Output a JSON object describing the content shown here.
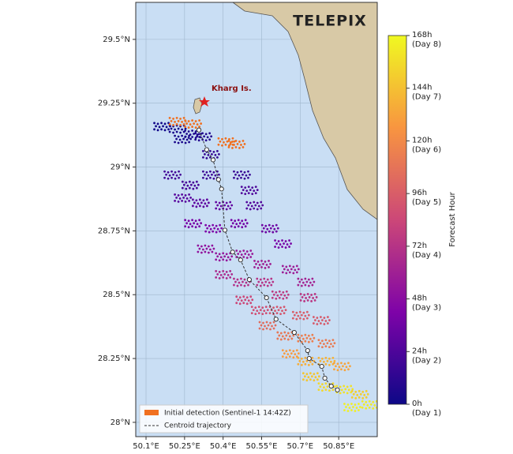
{
  "map": {
    "logo": "TELEPIX",
    "place_label": "Kharg Is.",
    "xlim": [
      50.06,
      51.0
    ],
    "ylim": [
      27.944,
      29.645
    ],
    "xticks": [
      {
        "value": 50.1,
        "label": "50.1°E"
      },
      {
        "value": 50.25,
        "label": "50.25°E"
      },
      {
        "value": 50.4,
        "label": "50.4°E"
      },
      {
        "value": 50.55,
        "label": "50.55°E"
      },
      {
        "value": 50.7,
        "label": "50.7°E"
      },
      {
        "value": 50.85,
        "label": "50.85°E"
      }
    ],
    "yticks": [
      {
        "value": 28,
        "label": "28°N"
      },
      {
        "value": 28.25,
        "label": "28.25°N"
      },
      {
        "value": 28.5,
        "label": "28.5°N"
      },
      {
        "value": 28.75,
        "label": "28.75°N"
      },
      {
        "value": 29,
        "label": "29°N"
      },
      {
        "value": 29.25,
        "label": "29.25°N"
      },
      {
        "value": 29.5,
        "label": "29.5°N"
      }
    ],
    "colorbar": {
      "label": "Forecast Hour",
      "clim": [
        0,
        168
      ],
      "ticks": [
        {
          "value": 0,
          "label": "0h",
          "day": "(Day 1)"
        },
        {
          "value": 24,
          "label": "24h",
          "day": "(Day 2)"
        },
        {
          "value": 48,
          "label": "48h",
          "day": "(Day 3)"
        },
        {
          "value": 72,
          "label": "72h",
          "day": "(Day 4)"
        },
        {
          "value": 96,
          "label": "96h",
          "day": "(Day 5)"
        },
        {
          "value": 120,
          "label": "120h",
          "day": "(Day 6)"
        },
        {
          "value": 144,
          "label": "144h",
          "day": "(Day 7)"
        },
        {
          "value": 168,
          "label": "168h",
          "day": "(Day 8)"
        }
      ]
    },
    "legend": {
      "initial": "Initial detection (Sentinel-1 14:42Z)",
      "initial_color": "#f07020",
      "trajectory": "Centroid trajectory"
    },
    "initial_detection": [
      {
        "lon": 50.22,
        "lat": 29.18
      },
      {
        "lon": 50.28,
        "lat": 29.17
      },
      {
        "lon": 50.41,
        "lat": 29.1
      },
      {
        "lon": 50.45,
        "lat": 29.09
      }
    ],
    "particles": [
      {
        "lon": 50.16,
        "lat": 29.16,
        "hour": 2
      },
      {
        "lon": 50.22,
        "lat": 29.15,
        "hour": 4
      },
      {
        "lon": 50.28,
        "lat": 29.13,
        "hour": 6
      },
      {
        "lon": 50.32,
        "lat": 29.12,
        "hour": 8
      },
      {
        "lon": 50.24,
        "lat": 29.11,
        "hour": 5
      },
      {
        "lon": 50.35,
        "lat": 29.05,
        "hour": 14
      },
      {
        "lon": 50.2,
        "lat": 28.97,
        "hour": 20
      },
      {
        "lon": 50.27,
        "lat": 28.93,
        "hour": 22
      },
      {
        "lon": 50.35,
        "lat": 28.97,
        "hour": 18
      },
      {
        "lon": 50.47,
        "lat": 28.97,
        "hour": 16
      },
      {
        "lon": 50.5,
        "lat": 28.91,
        "hour": 24
      },
      {
        "lon": 50.24,
        "lat": 28.88,
        "hour": 28
      },
      {
        "lon": 50.31,
        "lat": 28.86,
        "hour": 30
      },
      {
        "lon": 50.4,
        "lat": 28.85,
        "hour": 32
      },
      {
        "lon": 50.52,
        "lat": 28.85,
        "hour": 26
      },
      {
        "lon": 50.28,
        "lat": 28.78,
        "hour": 40
      },
      {
        "lon": 50.36,
        "lat": 28.76,
        "hour": 42
      },
      {
        "lon": 50.46,
        "lat": 28.78,
        "hour": 38
      },
      {
        "lon": 50.58,
        "lat": 28.76,
        "hour": 36
      },
      {
        "lon": 50.63,
        "lat": 28.7,
        "hour": 40
      },
      {
        "lon": 50.33,
        "lat": 28.68,
        "hour": 52
      },
      {
        "lon": 50.4,
        "lat": 28.65,
        "hour": 54
      },
      {
        "lon": 50.48,
        "lat": 28.66,
        "hour": 56
      },
      {
        "lon": 50.55,
        "lat": 28.62,
        "hour": 60
      },
      {
        "lon": 50.66,
        "lat": 28.6,
        "hour": 58
      },
      {
        "lon": 50.72,
        "lat": 28.55,
        "hour": 62
      },
      {
        "lon": 50.4,
        "lat": 28.58,
        "hour": 66
      },
      {
        "lon": 50.47,
        "lat": 28.55,
        "hour": 70
      },
      {
        "lon": 50.56,
        "lat": 28.55,
        "hour": 72
      },
      {
        "lon": 50.62,
        "lat": 28.5,
        "hour": 76
      },
      {
        "lon": 50.73,
        "lat": 28.49,
        "hour": 74
      },
      {
        "lon": 50.48,
        "lat": 28.48,
        "hour": 84
      },
      {
        "lon": 50.54,
        "lat": 28.44,
        "hour": 88
      },
      {
        "lon": 50.61,
        "lat": 28.44,
        "hour": 92
      },
      {
        "lon": 50.7,
        "lat": 28.42,
        "hour": 96
      },
      {
        "lon": 50.78,
        "lat": 28.4,
        "hour": 94
      },
      {
        "lon": 50.57,
        "lat": 28.38,
        "hour": 104
      },
      {
        "lon": 50.64,
        "lat": 28.34,
        "hour": 110
      },
      {
        "lon": 50.72,
        "lat": 28.33,
        "hour": 114
      },
      {
        "lon": 50.8,
        "lat": 28.31,
        "hour": 112
      },
      {
        "lon": 50.66,
        "lat": 28.27,
        "hour": 128
      },
      {
        "lon": 50.72,
        "lat": 28.24,
        "hour": 136
      },
      {
        "lon": 50.8,
        "lat": 28.24,
        "hour": 138
      },
      {
        "lon": 50.86,
        "lat": 28.22,
        "hour": 132
      },
      {
        "lon": 50.74,
        "lat": 28.18,
        "hour": 146
      },
      {
        "lon": 50.8,
        "lat": 28.14,
        "hour": 154
      },
      {
        "lon": 50.87,
        "lat": 28.13,
        "hour": 158
      },
      {
        "lon": 50.93,
        "lat": 28.11,
        "hour": 150
      },
      {
        "lon": 50.9,
        "lat": 28.06,
        "hour": 164
      },
      {
        "lon": 50.97,
        "lat": 28.07,
        "hour": 162
      }
    ],
    "centroid": {
      "lon": [
        50.306,
        50.336,
        50.361,
        50.382,
        50.394,
        50.407,
        50.437,
        50.468,
        50.502,
        50.569,
        50.606,
        50.677,
        50.729,
        50.735,
        50.784,
        50.796,
        50.821,
        50.845
      ],
      "lat": [
        29.145,
        29.068,
        29.028,
        28.951,
        28.914,
        28.753,
        28.667,
        28.636,
        28.559,
        28.488,
        28.404,
        28.352,
        28.281,
        28.25,
        28.219,
        28.173,
        28.142,
        28.127
      ]
    }
  }
}
